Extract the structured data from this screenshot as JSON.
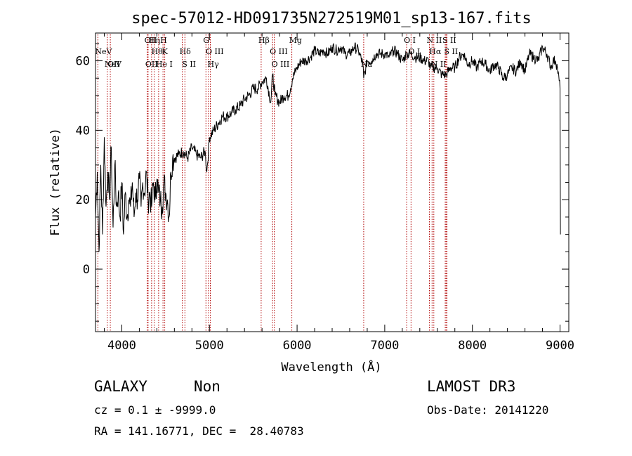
{
  "chart_data": {
    "type": "line",
    "title": "spec-57012-HD091735N272519M01_sp13-167.fits",
    "xlabel": "Wavelength (Å)",
    "ylabel": "Flux (relative)",
    "xlim": [
      3700,
      9100
    ],
    "ylim": [
      -18,
      68
    ],
    "xticks": [
      4000,
      5000,
      6000,
      7000,
      8000,
      9000
    ],
    "yticks": [
      0,
      20,
      40,
      60
    ],
    "grid": false,
    "series": [
      {
        "color": "#000000",
        "x": [
          3700,
          3720,
          3740,
          3760,
          3780,
          3800,
          3820,
          3840,
          3860,
          3880,
          3900,
          3920,
          3940,
          3960,
          3980,
          4000,
          4020,
          4040,
          4060,
          4080,
          4100,
          4120,
          4140,
          4160,
          4180,
          4200,
          4220,
          4240,
          4260,
          4280,
          4300,
          4320,
          4340,
          4360,
          4380,
          4400,
          4420,
          4440,
          4460,
          4480,
          4500,
          4520,
          4540,
          4560,
          4580,
          4600,
          4650,
          4700,
          4750,
          4800,
          4850,
          4900,
          4950,
          4970,
          5000,
          5050,
          5100,
          5150,
          5200,
          5250,
          5300,
          5350,
          5400,
          5450,
          5500,
          5550,
          5600,
          5650,
          5700,
          5720,
          5750,
          5800,
          5850,
          5900,
          5950,
          6000,
          6050,
          6100,
          6150,
          6200,
          6250,
          6300,
          6350,
          6400,
          6450,
          6500,
          6550,
          6600,
          6650,
          6700,
          6750,
          6760,
          6800,
          6850,
          6900,
          6950,
          7000,
          7050,
          7100,
          7150,
          7200,
          7250,
          7300,
          7350,
          7400,
          7450,
          7500,
          7520,
          7550,
          7600,
          7650,
          7700,
          7750,
          7800,
          7850,
          7900,
          7950,
          8000,
          8050,
          8100,
          8150,
          8200,
          8250,
          8300,
          8350,
          8400,
          8450,
          8500,
          8550,
          8600,
          8650,
          8700,
          8750,
          8800,
          8850,
          8900,
          8920,
          8950,
          8970,
          9000,
          9005
        ],
        "y": [
          15,
          28,
          5,
          30,
          10,
          38,
          18,
          28,
          20,
          35,
          12,
          30,
          18,
          22,
          15,
          25,
          10,
          22,
          15,
          20,
          18,
          25,
          15,
          22,
          20,
          26,
          18,
          25,
          22,
          28,
          20,
          22,
          18,
          25,
          20,
          26,
          22,
          20,
          18,
          25,
          22,
          20,
          15,
          28,
          32,
          32,
          33,
          34,
          32,
          35,
          33,
          32,
          34,
          28,
          38,
          40,
          42,
          44,
          44,
          45,
          46,
          47,
          49,
          50,
          52,
          52,
          54,
          55,
          48,
          56,
          50,
          48,
          50,
          50,
          55,
          58,
          60,
          60,
          61,
          63,
          62,
          63,
          62,
          64,
          63,
          64,
          62,
          62,
          64,
          63,
          59,
          55,
          60,
          60,
          62,
          62,
          62,
          61,
          63,
          62,
          60,
          62,
          62,
          61,
          61,
          60,
          60,
          58,
          58,
          58,
          56,
          56,
          58,
          58,
          61,
          62,
          59,
          60,
          58,
          60,
          59,
          57,
          59,
          58,
          55,
          56,
          58,
          57,
          60,
          57,
          62,
          61,
          60,
          64,
          62,
          58,
          60,
          60,
          58,
          52,
          10
        ]
      }
    ],
    "lines": [
      {
        "x": 3727,
        "label": "NeV",
        "row": 1
      },
      {
        "x": 3835,
        "label": "NeV",
        "row": 2
      },
      {
        "x": 3869,
        "label": "OII",
        "row": 3
      },
      {
        "x": 4290,
        "label": "OII",
        "row": 0
      },
      {
        "x": 4300,
        "label": "OII",
        "row": 2
      },
      {
        "x": 4340,
        "label": "Hη",
        "row": 0
      },
      {
        "x": 4370,
        "label": "Hθ",
        "row": 1
      },
      {
        "x": 4420,
        "label": "He I",
        "row": 2
      },
      {
        "x": 4470,
        "label": "H",
        "row": 0
      },
      {
        "x": 4490,
        "label": "K",
        "row": 1
      },
      {
        "x": 4690,
        "label": "Hδ",
        "row": 1
      },
      {
        "x": 4720,
        "label": "S II",
        "row": 2
      },
      {
        "x": 4960,
        "label": "G",
        "row": 0
      },
      {
        "x": 4990,
        "label": "O III",
        "row": 1
      },
      {
        "x": 5010,
        "label": "Hγ",
        "row": 2
      },
      {
        "x": 5590,
        "label": "Hβ",
        "row": 0
      },
      {
        "x": 5720,
        "label": "O III",
        "row": 1
      },
      {
        "x": 5740,
        "label": "O III",
        "row": 2
      },
      {
        "x": 5940,
        "label": "Mg",
        "row": 0
      },
      {
        "x": 6760,
        "label": "Na",
        "row": 2
      },
      {
        "x": 7250,
        "label": "O I",
        "row": 0
      },
      {
        "x": 7300,
        "label": "O I",
        "row": 1
      },
      {
        "x": 7510,
        "label": "N II",
        "row": 0
      },
      {
        "x": 7540,
        "label": "Hα",
        "row": 1
      },
      {
        "x": 7560,
        "label": "N II",
        "row": 2
      },
      {
        "x": 7690,
        "label": "S II",
        "row": 0
      },
      {
        "x": 7710,
        "label": "S II",
        "row": 1
      },
      {
        "x": 7700,
        "label": "",
        "row": 2
      }
    ]
  },
  "info": {
    "class_label": "GALAXY",
    "subclass_label": "Non",
    "cz_text": "cz = 0.1 ± -9999.0",
    "coords_text": "RA = 141.16771, DEC =  28.40783",
    "survey": "LAMOST DR3",
    "obs_date": "Obs-Date: 20141220"
  }
}
